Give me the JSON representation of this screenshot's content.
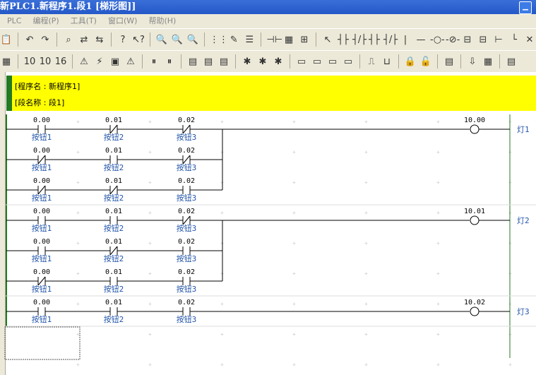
{
  "window": {
    "title": "新PLC1.新程序1.段1 [梯形图]]"
  },
  "menu": [
    "PLC",
    "编程(P)",
    "工具(T)",
    "窗口(W)",
    "帮助(H)"
  ],
  "toolbar1": [
    "paste-icon",
    "undo-icon",
    "redo-icon",
    "find-icon",
    "replace-icon",
    "find-replace-icon",
    "help-icon",
    "context-help-icon",
    "zoom-out-icon",
    "zoom-fit-icon",
    "zoom-in-icon",
    "grid-icon",
    "comment-icon",
    "list-icon",
    "contact-view-icon",
    "io-table-icon",
    "tree-icon",
    "select-icon",
    "no-contact-icon",
    "nc-contact-icon",
    "or-no-icon",
    "or-nc-icon",
    "vertical-line-icon",
    "horizontal-line-icon",
    "coil-icon",
    "nc-coil-icon",
    "instruction-icon",
    "rung-icon",
    "branch-icon",
    "line-icon",
    "delete-icon"
  ],
  "toolbar1_glyphs": [
    "📋",
    "↶",
    "↷",
    "⌕",
    "⇄",
    "⇆",
    "?",
    "↖?",
    "🔍",
    "🔍",
    "🔍",
    "⋮⋮",
    "✎",
    "☰",
    "⊣⊢",
    "▦",
    "⊞",
    "↖",
    "┤├",
    "┤/├",
    "┤├",
    "┤/├",
    "|",
    "—",
    "-○-",
    "-⊘-",
    "⊟",
    "⊟",
    "⊢",
    "└",
    "✕"
  ],
  "toolbar2": [
    "memory-icon",
    "dec-10-icon",
    "hex-10-icon",
    "hex-16-icon",
    "warning-icon",
    "online-icon",
    "monitor-icon",
    "find-warning-icon",
    "pause-icon",
    "pause2-icon",
    "transfer-icon",
    "compare-icon",
    "edit-icon",
    "force-icon",
    "force2-icon",
    "force3-icon",
    "block1-icon",
    "block2-icon",
    "block3-icon",
    "block4-icon",
    "diff-icon",
    "timechart-icon",
    "lock-icon",
    "unlock-icon",
    "program-icon",
    "download-icon",
    "upload-icon",
    "settings-icon"
  ],
  "toolbar2_glyphs": [
    "▦",
    "10",
    "10",
    "16",
    "⚠",
    "⚡",
    "▣",
    "⚠",
    "⏸",
    "⏸",
    "▤",
    "▤",
    "▤",
    "✱",
    "✱",
    "✱",
    "▭",
    "▭",
    "▭",
    "▭",
    "⎍",
    "⊔",
    "🔒",
    "🔓",
    "▤",
    "⇩",
    "▦",
    "▤"
  ],
  "header": {
    "program_name": "[程序名 : 新程序1]",
    "section_name": "[段名称 : 段1]"
  },
  "colors": {
    "rail": "#237a23",
    "comment": "#2255aa",
    "header_bg": "#ffff00"
  },
  "rungs": [
    {
      "rows": [
        [
          {
            "addr": "0.00",
            "name": "按钮1",
            "type": "NO"
          },
          {
            "addr": "0.01",
            "name": "按钮2",
            "type": "NC"
          },
          {
            "addr": "0.02",
            "name": "按钮3",
            "type": "NC"
          }
        ],
        [
          {
            "addr": "0.00",
            "name": "按钮1",
            "type": "NC"
          },
          {
            "addr": "0.01",
            "name": "按钮2",
            "type": "NO"
          },
          {
            "addr": "0.02",
            "name": "按钮3",
            "type": "NC"
          }
        ],
        [
          {
            "addr": "0.00",
            "name": "按钮1",
            "type": "NC"
          },
          {
            "addr": "0.01",
            "name": "按钮2",
            "type": "NC"
          },
          {
            "addr": "0.02",
            "name": "按钮3",
            "type": "NO"
          }
        ]
      ],
      "coil": {
        "addr": "10.00",
        "name": "灯1"
      }
    },
    {
      "rows": [
        [
          {
            "addr": "0.00",
            "name": "按钮1",
            "type": "NO"
          },
          {
            "addr": "0.01",
            "name": "按钮2",
            "type": "NO"
          },
          {
            "addr": "0.02",
            "name": "按钮3",
            "type": "NC"
          }
        ],
        [
          {
            "addr": "0.00",
            "name": "按钮1",
            "type": "NO"
          },
          {
            "addr": "0.01",
            "name": "按钮2",
            "type": "NC"
          },
          {
            "addr": "0.02",
            "name": "按钮3",
            "type": "NO"
          }
        ],
        [
          {
            "addr": "0.00",
            "name": "按钮1",
            "type": "NC"
          },
          {
            "addr": "0.01",
            "name": "按钮2",
            "type": "NO"
          },
          {
            "addr": "0.02",
            "name": "按钮3",
            "type": "NO"
          }
        ]
      ],
      "coil": {
        "addr": "10.01",
        "name": "灯2"
      }
    },
    {
      "rows": [
        [
          {
            "addr": "0.00",
            "name": "按钮1",
            "type": "NO"
          },
          {
            "addr": "0.01",
            "name": "按钮2",
            "type": "NO"
          },
          {
            "addr": "0.02",
            "name": "按钮3",
            "type": "NO"
          }
        ]
      ],
      "coil": {
        "addr": "10.02",
        "name": "灯3"
      }
    }
  ]
}
